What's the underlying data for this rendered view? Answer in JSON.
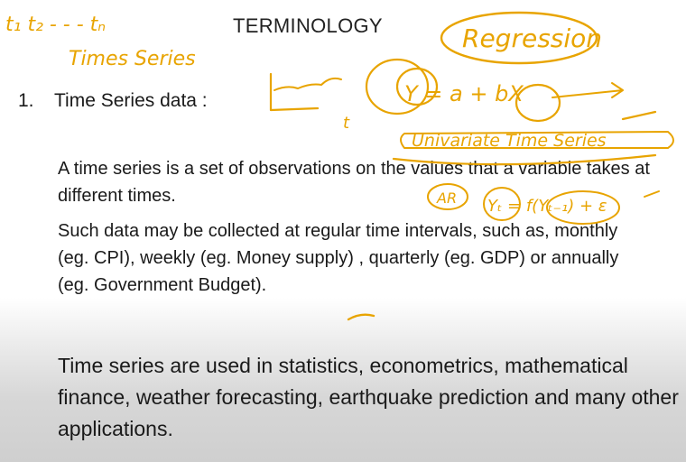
{
  "slide": {
    "title": "TERMINOLOGY",
    "section_number": "1.",
    "section_heading": "Time Series data :",
    "paragraph_1": "A time series is a set of observations on the values that a variable takes at different times.",
    "paragraph_2": "Such data may be collected at regular time intervals, such as, monthly (eg. CPI), weekly (eg. Money supply) , quarterly (eg. GDP) or annually (eg. Government Budget).",
    "paragraph_3": "Time series are used in statistics, econometrics, mathematical finance, weather forecasting, earthquake prediction and many other applications."
  },
  "annotations": {
    "ink_color": "#e8a400",
    "t_sequence": "t₁ t₂ - - - tₙ",
    "times_series": "Times Series",
    "regression": "Regression",
    "equation": "Y = a + bX",
    "univariate": "Univariate Time Series",
    "axis_t": "t",
    "ar_label": "AR",
    "ar_equation": "Yₜ = f(Yₜ₋₁) + ε"
  }
}
